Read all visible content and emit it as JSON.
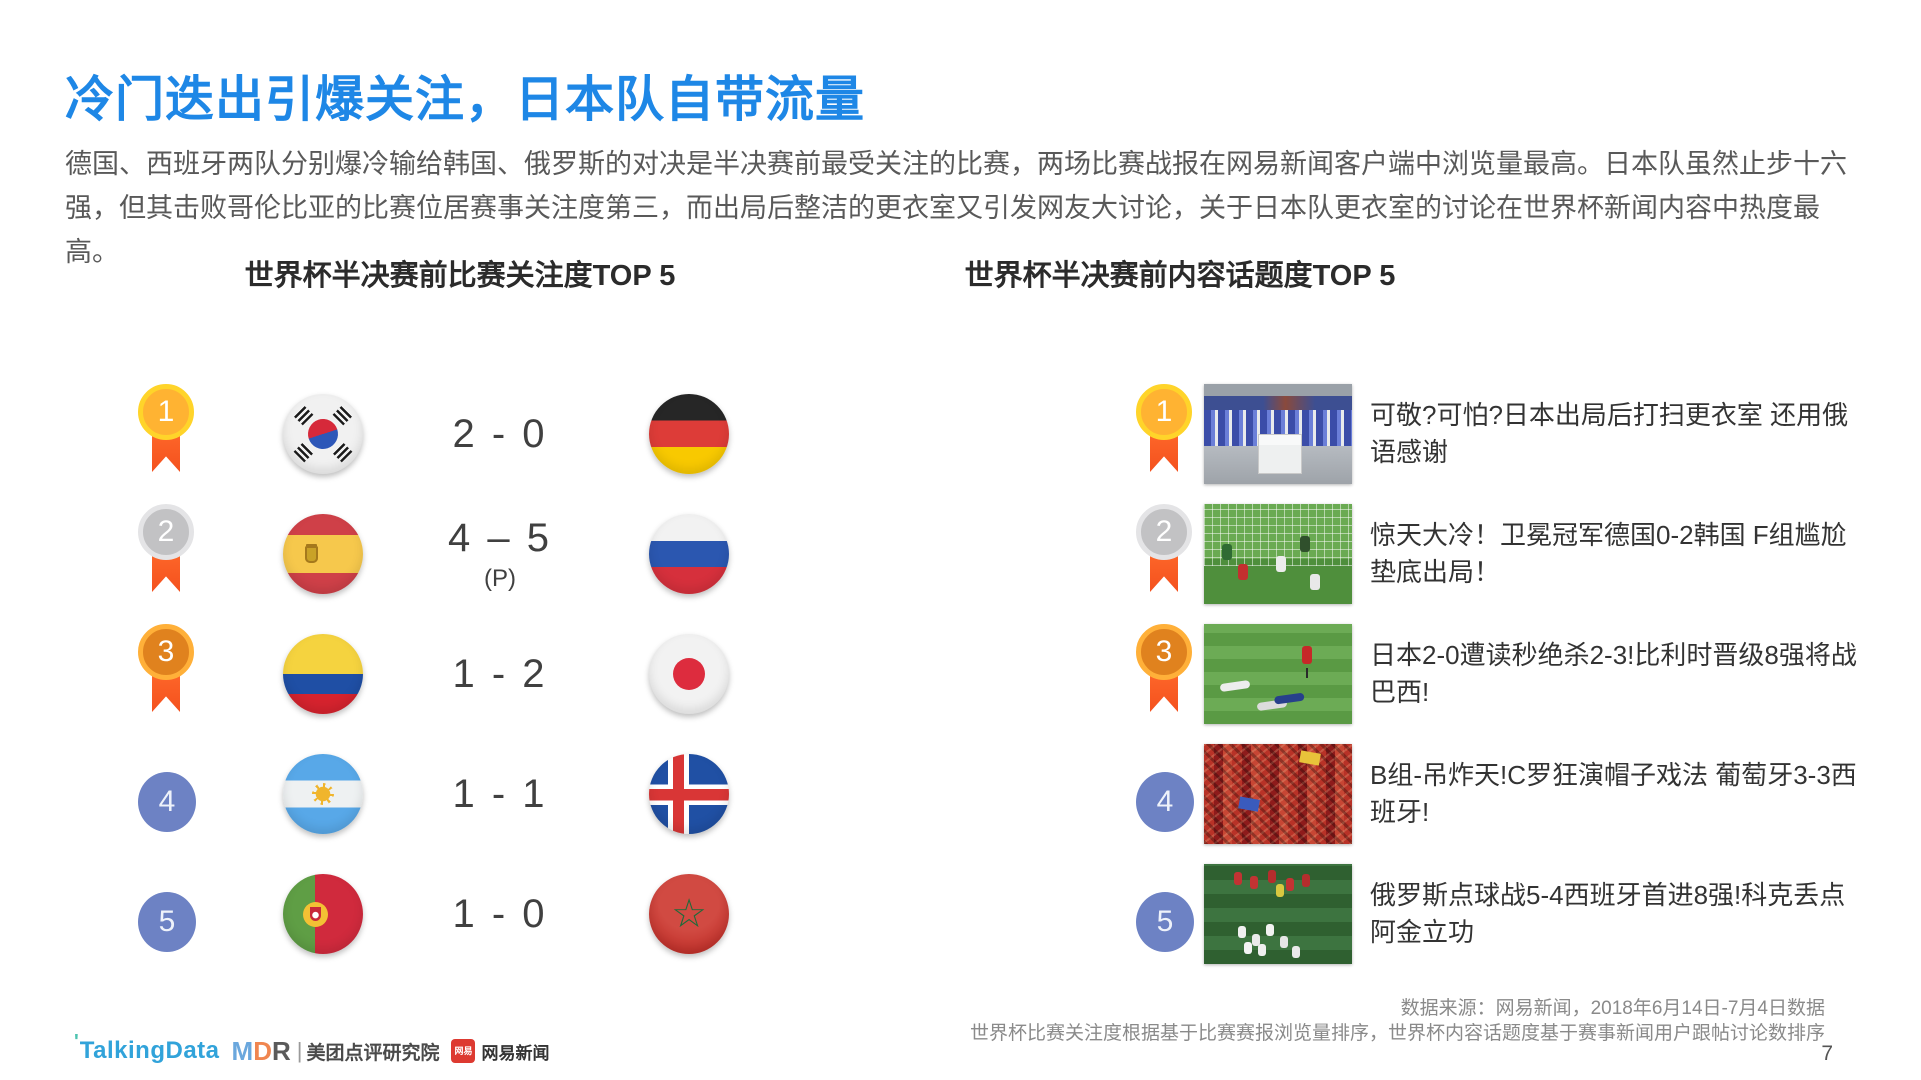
{
  "page": {
    "title": "冷门迭出引爆关注，日本队自带流量",
    "body": "德国、西班牙两队分别爆冷输给韩国、俄罗斯的对决是半决赛前最受关注的比赛，两场比赛战报在网易新闻客户端中浏览量最高。日本队虽然止步十六强，但其击败哥伦比亚的比赛位居赛事关注度第三，而出局后整洁的更衣室又引发网友大讨论，关于日本队更衣室的讨论在世界杯新闻内容中热度最高。",
    "page_number": "7"
  },
  "left_panel": {
    "header": "世界杯半决赛前比赛关注度TOP 5",
    "rows": [
      {
        "rank": "1",
        "medal": "gold",
        "team_left": "south-korea",
        "score": "2 - 0",
        "score_note": "",
        "team_right": "germany"
      },
      {
        "rank": "2",
        "medal": "silver",
        "team_left": "spain",
        "score": "4 – 5",
        "score_note": "(P)",
        "team_right": "russia"
      },
      {
        "rank": "3",
        "medal": "bronze",
        "team_left": "colombia",
        "score": "1 - 2",
        "score_note": "",
        "team_right": "japan"
      },
      {
        "rank": "4",
        "medal": "plain",
        "team_left": "argentina",
        "score": "1 - 1",
        "score_note": "",
        "team_right": "iceland"
      },
      {
        "rank": "5",
        "medal": "plain",
        "team_left": "portugal",
        "score": "1 - 0",
        "score_note": "",
        "team_right": "morocco"
      }
    ]
  },
  "right_panel": {
    "header": "世界杯半决赛前内容话题度TOP 5",
    "rows": [
      {
        "rank": "1",
        "medal": "gold",
        "image": "japan-locker-room",
        "headline": "可敬?可怕?日本出局后打扫更衣室 还用俄语感谢"
      },
      {
        "rank": "2",
        "medal": "silver",
        "image": "germany-korea-goal",
        "headline": "惊天大冷！卫冕冠军德国0-2韩国 F组尴尬垫底出局！"
      },
      {
        "rank": "3",
        "medal": "bronze",
        "image": "japan-belgium-match",
        "headline": "日本2-0遭读秒绝杀2-3!比利时晋级8强将战巴西!"
      },
      {
        "rank": "4",
        "medal": "plain",
        "image": "portugal-spain-fans",
        "headline": "B组-吊炸天!C罗狂演帽子戏法 葡萄牙3-3西班牙!"
      },
      {
        "rank": "5",
        "medal": "plain",
        "image": "russia-spain-penalties",
        "headline": "俄罗斯点球战5-4西班牙首进8强!科克丢点阿金立功"
      }
    ]
  },
  "footer": {
    "source_line1": "数据来源：网易新闻，2018年6月14日-7月4日数据",
    "source_line2": "世界杯比赛关注度根据基于比赛赛报浏览量排序，世界杯内容话题度基于赛事新闻用户跟帖讨论数排序",
    "logos": {
      "talkingdata": "TalkingData",
      "mdr_m": "M",
      "mdr_d": "D",
      "mdr_r": "R",
      "meituan": "美团点评研究院",
      "netease_badge": "网易",
      "netease": "网易新闻"
    }
  },
  "colors": {
    "title_blue": "#1e87e6",
    "medal_gold": "#ffb332",
    "medal_silver": "#c2c2c4",
    "medal_bronze": "#e0821e",
    "rank_plain_blue": "#6d82c4",
    "ribbon_orange": "#f4511e"
  }
}
